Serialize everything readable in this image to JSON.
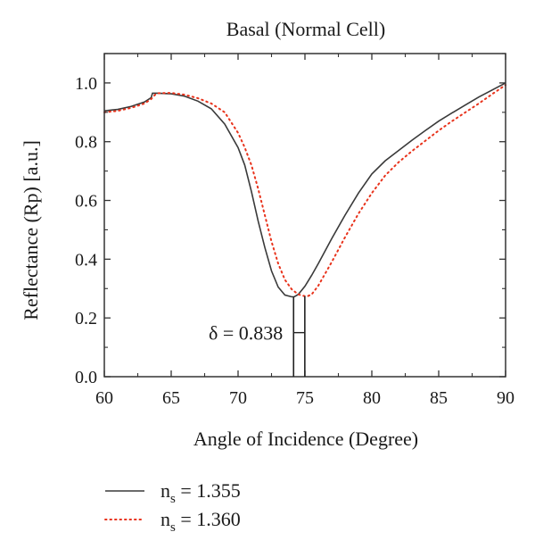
{
  "chart_data": {
    "type": "line",
    "title": "Basal (Normal Cell)",
    "xlabel": "Angle of Incidence (Degree)",
    "ylabel": "Reflectance (Rp) [a.u.]",
    "xlim": [
      60,
      90
    ],
    "ylim": [
      0,
      1.1
    ],
    "x_ticks": [
      "60",
      "65",
      "70",
      "75",
      "80",
      "85",
      "90"
    ],
    "y_ticks": [
      "0.0",
      "0.2",
      "0.4",
      "0.6",
      "0.8",
      "1.0"
    ],
    "grid": false,
    "legend_position": "bottom-left",
    "series": [
      {
        "name_main": "n",
        "name_sub": "s",
        "name_value": " = 1.355",
        "style": "solid",
        "color": "#3a3a3a",
        "x": [
          60,
          61,
          62,
          63,
          63.5,
          63.6,
          64,
          65,
          66,
          67,
          68,
          69,
          70,
          70.5,
          71,
          71.5,
          72,
          72.5,
          73,
          73.5,
          74,
          74.2,
          74.5,
          75,
          75.5,
          76,
          77,
          78,
          79,
          80,
          81,
          82,
          83,
          84,
          85,
          86,
          87,
          88,
          89,
          90
        ],
        "y": [
          0.905,
          0.91,
          0.92,
          0.935,
          0.95,
          0.965,
          0.965,
          0.963,
          0.955,
          0.938,
          0.912,
          0.86,
          0.78,
          0.72,
          0.63,
          0.53,
          0.44,
          0.36,
          0.305,
          0.278,
          0.272,
          0.272,
          0.28,
          0.308,
          0.345,
          0.385,
          0.47,
          0.55,
          0.625,
          0.69,
          0.735,
          0.77,
          0.805,
          0.838,
          0.87,
          0.898,
          0.925,
          0.952,
          0.976,
          1.0
        ]
      },
      {
        "name_main": "n",
        "name_sub": "s",
        "name_value": " = 1.360",
        "style": "dotted",
        "color": "#e8331c",
        "x": [
          60,
          61,
          62,
          63,
          63.5,
          63.8,
          64,
          65,
          66,
          67,
          68,
          69,
          70,
          70.5,
          71,
          71.5,
          72,
          72.5,
          73,
          73.5,
          74,
          74.5,
          75,
          75.2,
          75.5,
          76,
          76.5,
          77,
          78,
          79,
          80,
          81,
          82,
          83,
          84,
          85,
          86,
          87,
          88,
          89,
          90
        ],
        "y": [
          0.9,
          0.905,
          0.915,
          0.93,
          0.945,
          0.96,
          0.965,
          0.966,
          0.96,
          0.948,
          0.93,
          0.9,
          0.83,
          0.78,
          0.72,
          0.64,
          0.55,
          0.46,
          0.385,
          0.33,
          0.298,
          0.28,
          0.274,
          0.274,
          0.28,
          0.31,
          0.35,
          0.39,
          0.475,
          0.555,
          0.625,
          0.685,
          0.73,
          0.768,
          0.803,
          0.838,
          0.87,
          0.9,
          0.93,
          0.962,
          0.993
        ]
      }
    ],
    "annotation": {
      "label": "δ = 0.838",
      "x_left": 74.15,
      "x_right": 74.99,
      "marker_y": 0.15
    }
  }
}
